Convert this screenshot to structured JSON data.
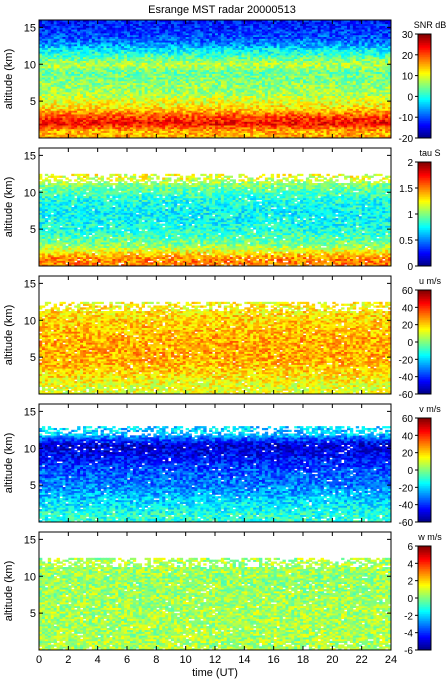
{
  "title": "Esrange MST radar 20000513",
  "chart_data": [
    {
      "type": "heatmap",
      "panel": 1,
      "quantity": "SNR",
      "colorbar_label": "SNR dB",
      "ylabel": "altitude (km)",
      "ylim": [
        0,
        16
      ],
      "yticks": [
        5,
        10,
        15
      ],
      "xlim": [
        0,
        24
      ],
      "crange": [
        -20,
        30
      ],
      "cticks": [
        30,
        20,
        10,
        0,
        -10,
        -20
      ],
      "profile": [
        {
          "alt": 1,
          "value": 15
        },
        {
          "alt": 2,
          "value": 24
        },
        {
          "alt": 3,
          "value": 20
        },
        {
          "alt": 4,
          "value": 13
        },
        {
          "alt": 5,
          "value": 10
        },
        {
          "alt": 6,
          "value": 7
        },
        {
          "alt": 7,
          "value": 6
        },
        {
          "alt": 8,
          "value": 5
        },
        {
          "alt": 9,
          "value": 4
        },
        {
          "alt": 10,
          "value": 8
        },
        {
          "alt": 11,
          "value": 3
        },
        {
          "alt": 12,
          "value": -2
        },
        {
          "alt": 13,
          "value": -8
        },
        {
          "alt": 14,
          "value": -10
        },
        {
          "alt": 15,
          "value": -12
        },
        {
          "alt": 16,
          "value": -13
        }
      ]
    },
    {
      "type": "heatmap",
      "panel": 2,
      "quantity": "tau",
      "colorbar_label": "tau S",
      "ylabel": "altitude (km)",
      "ylim": [
        0,
        16
      ],
      "yticks": [
        5,
        10,
        15
      ],
      "xlim": [
        0,
        24
      ],
      "crange": [
        0,
        2
      ],
      "cticks": [
        2,
        1.5,
        1,
        0.5,
        0
      ],
      "data_top_km": 12.5,
      "profile": [
        {
          "alt": 1,
          "value": 1.5
        },
        {
          "alt": 3,
          "value": 1.0
        },
        {
          "alt": 5,
          "value": 0.8
        },
        {
          "alt": 7,
          "value": 0.75
        },
        {
          "alt": 9,
          "value": 0.8
        },
        {
          "alt": 11,
          "value": 1.0
        },
        {
          "alt": 12,
          "value": 1.2
        }
      ]
    },
    {
      "type": "heatmap",
      "panel": 3,
      "quantity": "u",
      "colorbar_label": "u m/s",
      "ylabel": "altitude (km)",
      "ylim": [
        0,
        16
      ],
      "yticks": [
        5,
        10,
        15
      ],
      "xlim": [
        0,
        24
      ],
      "crange": [
        -60,
        60
      ],
      "cticks": [
        60,
        40,
        20,
        0,
        -20,
        -40,
        -60
      ],
      "data_top_km": 12.5,
      "profile": [
        {
          "alt": 1,
          "value": 12
        },
        {
          "alt": 3,
          "value": 20
        },
        {
          "alt": 5,
          "value": 25
        },
        {
          "alt": 7,
          "value": 25
        },
        {
          "alt": 9,
          "value": 22
        },
        {
          "alt": 11,
          "value": 18
        },
        {
          "alt": 12,
          "value": 15
        }
      ]
    },
    {
      "type": "heatmap",
      "panel": 4,
      "quantity": "v",
      "colorbar_label": "v m/s",
      "ylabel": "altitude (km)",
      "ylim": [
        0,
        16
      ],
      "yticks": [
        5,
        10,
        15
      ],
      "xlim": [
        0,
        24
      ],
      "crange": [
        -60,
        60
      ],
      "cticks": [
        60,
        40,
        20,
        0,
        -20,
        -40,
        -60
      ],
      "data_top_km": 13,
      "profile": [
        {
          "alt": 1,
          "value": -10
        },
        {
          "alt": 3,
          "value": -20
        },
        {
          "alt": 5,
          "value": -30
        },
        {
          "alt": 7,
          "value": -35
        },
        {
          "alt": 9,
          "value": -45
        },
        {
          "alt": 10.5,
          "value": -50
        },
        {
          "alt": 12,
          "value": -20
        }
      ]
    },
    {
      "type": "heatmap",
      "panel": 5,
      "quantity": "w",
      "colorbar_label": "w m/s",
      "ylabel": "altitude (km)",
      "xlabel": "time (UT)",
      "ylim": [
        0,
        16
      ],
      "yticks": [
        5,
        10,
        15
      ],
      "xlim": [
        0,
        24
      ],
      "xticks": [
        0,
        2,
        4,
        6,
        8,
        10,
        12,
        14,
        16,
        18,
        20,
        22,
        24
      ],
      "crange": [
        -6,
        6
      ],
      "cticks": [
        6,
        4,
        2,
        0,
        -2,
        -4,
        -6
      ],
      "data_top_km": 12.5,
      "profile": [
        {
          "alt": 1,
          "value": 0.5
        },
        {
          "alt": 5,
          "value": 0.5
        },
        {
          "alt": 9,
          "value": 0.3
        },
        {
          "alt": 12,
          "value": 0.5
        }
      ]
    }
  ]
}
